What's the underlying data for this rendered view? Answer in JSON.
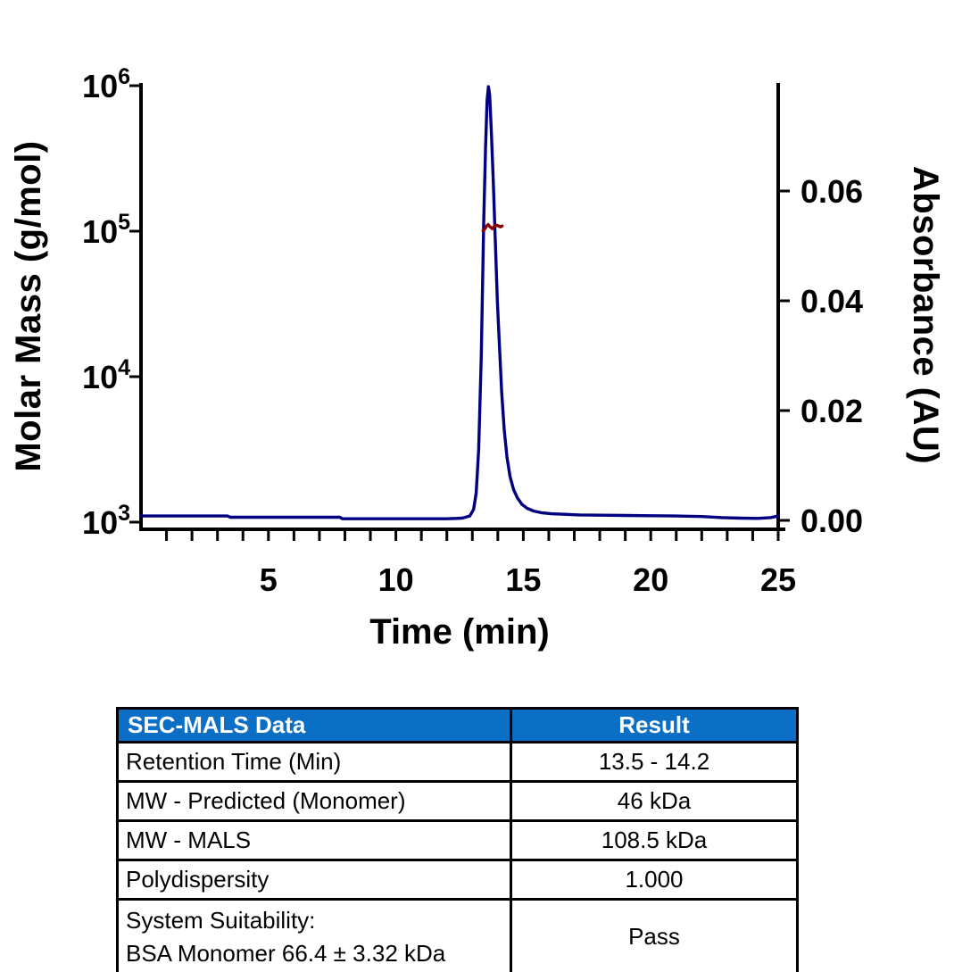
{
  "colors": {
    "absorbance_trace": "#000080",
    "molar_mass_trace": "#8B0000",
    "axis": "#000000",
    "table_header_bg": "#0B6FC5",
    "table_header_text": "#FFFFFF"
  },
  "chart_data": {
    "type": "line",
    "title": "",
    "xlabel": "Time (min)",
    "x_range": [
      0,
      25
    ],
    "x_minor_tick_interval": 1,
    "x_major_ticks": [
      {
        "label": "5",
        "value": 5
      },
      {
        "label": "10",
        "value": 10
      },
      {
        "label": "15",
        "value": 15
      },
      {
        "label": "20",
        "value": 20
      },
      {
        "label": "25",
        "value": 25
      }
    ],
    "y_left_axis": {
      "label": "Molar Mass (g/mol)",
      "scale": "log10",
      "range": [
        1000,
        1000000
      ],
      "ticks": [
        {
          "base": "10",
          "exp": "6",
          "value": 1000000
        },
        {
          "base": "10",
          "exp": "5",
          "value": 100000
        },
        {
          "base": "10",
          "exp": "4",
          "value": 10000
        },
        {
          "base": "10",
          "exp": "3",
          "value": 1000
        }
      ]
    },
    "y_right_axis": {
      "label": "Absorbance (AU)",
      "scale": "linear",
      "range": [
        0,
        0.08
      ],
      "ticks": [
        {
          "label": "0.06",
          "value": 0.06
        },
        {
          "label": "0.04",
          "value": 0.04
        },
        {
          "label": "0.02",
          "value": 0.02
        },
        {
          "label": "0.00",
          "value": 0.0
        }
      ]
    },
    "grid": false,
    "legend": "none",
    "series": [
      {
        "name": "absorbance-trace",
        "description": "UV absorbance chromatogram, peak at ~13.6 min",
        "axis": "right",
        "color": "#000080",
        "points": [
          [
            0,
            0.0008
          ],
          [
            1,
            0.0008
          ],
          [
            2,
            0.0008
          ],
          [
            3.4,
            0.0008
          ],
          [
            3.5,
            0.00057
          ],
          [
            5,
            0.00057
          ],
          [
            6.5,
            0.00057
          ],
          [
            7.8,
            0.00057
          ],
          [
            7.9,
            0.0003
          ],
          [
            9,
            0.0003
          ],
          [
            10.5,
            0.0003
          ],
          [
            12,
            0.0003
          ],
          [
            12.6,
            0.0004
          ],
          [
            12.9,
            0.0008
          ],
          [
            13.05,
            0.002
          ],
          [
            13.15,
            0.005
          ],
          [
            13.25,
            0.013
          ],
          [
            13.35,
            0.03
          ],
          [
            13.45,
            0.055
          ],
          [
            13.52,
            0.068
          ],
          [
            13.58,
            0.0765
          ],
          [
            13.63,
            0.079
          ],
          [
            13.68,
            0.0775
          ],
          [
            13.74,
            0.0715
          ],
          [
            13.82,
            0.062
          ],
          [
            13.9,
            0.051
          ],
          [
            13.98,
            0.04
          ],
          [
            14.06,
            0.032
          ],
          [
            14.15,
            0.0235
          ],
          [
            14.25,
            0.0165
          ],
          [
            14.36,
            0.0115
          ],
          [
            14.48,
            0.008
          ],
          [
            14.62,
            0.0056
          ],
          [
            14.78,
            0.004
          ],
          [
            14.95,
            0.0029
          ],
          [
            15.15,
            0.0022
          ],
          [
            15.4,
            0.0017
          ],
          [
            15.7,
            0.0014
          ],
          [
            16.1,
            0.0012
          ],
          [
            16.6,
            0.0011
          ],
          [
            17.2,
            0.001
          ],
          [
            18,
            0.00095
          ],
          [
            19,
            0.0009
          ],
          [
            20,
            0.00085
          ],
          [
            21,
            0.0008
          ],
          [
            22,
            0.0007
          ],
          [
            22.8,
            0.0005
          ],
          [
            23.5,
            0.0004
          ],
          [
            24.2,
            0.00035
          ],
          [
            24.7,
            0.0005
          ],
          [
            25,
            0.0008
          ]
        ]
      },
      {
        "name": "molar-mass-trace",
        "description": "MALS molar mass across peak, ~108.5 kDa",
        "axis": "left",
        "color": "#8B0000",
        "points": [
          [
            13.42,
            100500
          ],
          [
            13.48,
            103000
          ],
          [
            13.55,
            108000
          ],
          [
            13.62,
            111000
          ],
          [
            13.7,
            107000
          ],
          [
            13.78,
            104000
          ],
          [
            13.86,
            107500
          ],
          [
            13.95,
            110000
          ],
          [
            14.03,
            108500
          ],
          [
            14.1,
            107000
          ],
          [
            14.17,
            108500
          ]
        ]
      }
    ]
  },
  "table": {
    "header": {
      "data_col": "SEC-MALS Data",
      "result_col": "Result"
    },
    "rows": [
      {
        "label_lines": [
          "Retention Time (Min)"
        ],
        "result": "13.5 - 14.2"
      },
      {
        "label_lines": [
          "MW - Predicted (Monomer)"
        ],
        "result": "46 kDa"
      },
      {
        "label_lines": [
          "MW - MALS"
        ],
        "result": "108.5 kDa"
      },
      {
        "label_lines": [
          "Polydispersity"
        ],
        "result": "1.000"
      },
      {
        "label_lines": [
          "System Suitability:",
          "BSA Monomer 66.4 ± 3.32 kDa"
        ],
        "result": "Pass"
      }
    ]
  }
}
